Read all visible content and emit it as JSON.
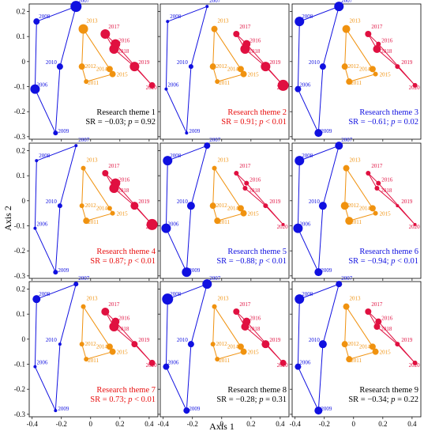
{
  "colors": {
    "blue": "#1010e0",
    "orange": "#f0920f",
    "red": "#e01040"
  },
  "chart_data": {
    "type": "scatter",
    "xlabel": "Axis 1",
    "ylabel": "Axis 2",
    "xlim": [
      -0.42,
      0.46
    ],
    "ylim": [
      -0.31,
      0.23
    ],
    "xticks": [
      -0.4,
      -0.2,
      0,
      0.2,
      0.4
    ],
    "xtick_labels": [
      "-0.4",
      "-0.2",
      "0",
      "0.2",
      "0.4"
    ],
    "yticks": [
      0.2,
      0.1,
      0,
      -0.1,
      -0.2,
      -0.3
    ],
    "ytick_labels": [
      "0.2",
      "0.1",
      "0",
      "-0.1",
      "-0.2",
      "-0.3"
    ],
    "grid": false,
    "trajectory": [
      {
        "year": "2006",
        "x": -0.38,
        "y": -0.11
      },
      {
        "year": "2007",
        "x": -0.1,
        "y": 0.22
      },
      {
        "year": "2008",
        "x": -0.37,
        "y": 0.16
      },
      {
        "year": "2009",
        "x": -0.24,
        "y": -0.285
      },
      {
        "year": "2010",
        "x": -0.21,
        "y": -0.02
      },
      {
        "year": "2011",
        "x": -0.03,
        "y": -0.08
      },
      {
        "year": "2012",
        "x": -0.06,
        "y": -0.02
      },
      {
        "year": "2013",
        "x": -0.05,
        "y": 0.13
      },
      {
        "year": "2014",
        "x": 0.13,
        "y": -0.03
      },
      {
        "year": "2015",
        "x": 0.15,
        "y": -0.05
      },
      {
        "year": "2016",
        "x": 0.17,
        "y": 0.07
      },
      {
        "year": "2017",
        "x": 0.1,
        "y": 0.11
      },
      {
        "year": "2018",
        "x": 0.16,
        "y": 0.05
      },
      {
        "year": "2019",
        "x": 0.3,
        "y": -0.02
      },
      {
        "year": "2020",
        "x": 0.42,
        "y": -0.095
      }
    ],
    "year_groups": [
      {
        "color": "blue",
        "years": [
          "2006",
          "2007",
          "2008",
          "2009",
          "2010"
        ],
        "path": [
          "2008",
          "2007",
          "2010",
          "2009",
          "2006",
          "2008"
        ]
      },
      {
        "color": "orange",
        "years": [
          "2011",
          "2012",
          "2013",
          "2014",
          "2015"
        ],
        "path": [
          "2013",
          "2012",
          "2011",
          "2015",
          "2014",
          "2013"
        ]
      },
      {
        "color": "red",
        "years": [
          "2016",
          "2017",
          "2018",
          "2019",
          "2020"
        ],
        "path": [
          "2017",
          "2016",
          "2020",
          "2019",
          "2018",
          "2017"
        ]
      }
    ],
    "panels": [
      {
        "label": "Research theme 1",
        "stat": "SR = −0.03; p = 0.92",
        "sr": "−0.03",
        "op": "=",
        "pval": "0.92",
        "color": "#000000",
        "sizes": {
          "2006": 6,
          "2007": 7,
          "2008": 4,
          "2009": 3,
          "2010": 4,
          "2011": 3,
          "2012": 4,
          "2013": 6,
          "2014": 4,
          "2015": 4,
          "2016": 6,
          "2017": 6,
          "2018": 6,
          "2019": 6,
          "2020": 4
        }
      },
      {
        "label": "Research theme 2",
        "stat": "SR = 0.91; p < 0.01",
        "sr": "0.91",
        "op": "<",
        "pval": "0.01",
        "color": "#e81010",
        "sizes": {
          "2006": 2,
          "2007": 2,
          "2008": 2,
          "2009": 2,
          "2010": 3,
          "2011": 3,
          "2012": 4,
          "2013": 4,
          "2014": 4,
          "2015": 4,
          "2016": 5,
          "2017": 4,
          "2018": 6,
          "2019": 6,
          "2020": 7
        }
      },
      {
        "label": "Research theme 3",
        "stat": "SR = −0.61; p = 0.02",
        "sr": "−0.61",
        "op": "=",
        "pval": "0.02",
        "color": "#1010e0",
        "sizes": {
          "2006": 4,
          "2007": 6,
          "2008": 6,
          "2009": 5,
          "2010": 4,
          "2011": 4,
          "2012": 4,
          "2013": 5,
          "2014": 4,
          "2015": 3,
          "2016": 3,
          "2017": 4,
          "2018": 5,
          "2019": 3,
          "2020": 3
        }
      },
      {
        "label": "Research theme 4",
        "stat": "SR = 0.87; p < 0.01",
        "sr": "0.87",
        "op": "<",
        "pval": "0.01",
        "color": "#e81010",
        "sizes": {
          "2006": 2,
          "2007": 2,
          "2008": 2,
          "2009": 3,
          "2010": 3,
          "2011": 4,
          "2012": 3,
          "2013": 3,
          "2014": 3,
          "2015": 3,
          "2016": 6,
          "2017": 4,
          "2018": 6,
          "2019": 5,
          "2020": 7
        }
      },
      {
        "label": "Research theme 5",
        "stat": "SR = −0.88; p < 0.01",
        "sr": "−0.88",
        "op": "<",
        "pval": "0.01",
        "color": "#1010e0",
        "sizes": {
          "2006": 6,
          "2007": 4,
          "2008": 6,
          "2009": 6,
          "2010": 5,
          "2011": 4,
          "2012": 4,
          "2013": 3,
          "2014": 4,
          "2015": 4,
          "2016": 3,
          "2017": 3,
          "2018": 3,
          "2019": 3,
          "2020": 2
        }
      },
      {
        "label": "Research theme 6",
        "stat": "SR = −0.94; p < 0.01",
        "sr": "−0.94",
        "op": "<",
        "pval": "0.01",
        "color": "#1010e0",
        "sizes": {
          "2006": 6,
          "2007": 5,
          "2008": 6,
          "2009": 5,
          "2010": 5,
          "2011": 5,
          "2012": 5,
          "2013": 4,
          "2014": 4,
          "2015": 3,
          "2016": 3,
          "2017": 3,
          "2018": 3,
          "2019": 2,
          "2020": 2
        }
      },
      {
        "label": "Research theme 7",
        "stat": "SR = 0.73; p < 0.01",
        "sr": "0.73",
        "op": "<",
        "pval": "0.01",
        "color": "#e81010",
        "sizes": {
          "2006": 2,
          "2007": 3,
          "2008": 5,
          "2009": 2,
          "2010": 2,
          "2011": 3,
          "2012": 3,
          "2013": 3,
          "2014": 4,
          "2015": 4,
          "2016": 5,
          "2017": 5,
          "2018": 6,
          "2019": 4,
          "2020": 4
        }
      },
      {
        "label": "Research theme 8",
        "stat": "SR = −0.28; p = 0.31",
        "sr": "−0.28",
        "op": "=",
        "pval": "0.31",
        "color": "#000000",
        "sizes": {
          "2006": 4,
          "2007": 6,
          "2008": 7,
          "2009": 4,
          "2010": 4,
          "2011": 3,
          "2012": 3,
          "2013": 3,
          "2014": 4,
          "2015": 4,
          "2016": 5,
          "2017": 4,
          "2018": 5,
          "2019": 5,
          "2020": 4
        }
      },
      {
        "label": "Research theme 9",
        "stat": "SR = −0.34; p = 0.22",
        "sr": "−0.34",
        "op": "=",
        "pval": "0.22",
        "color": "#000000",
        "sizes": {
          "2006": 4,
          "2007": 4,
          "2008": 6,
          "2009": 5,
          "2010": 5,
          "2011": 4,
          "2012": 4,
          "2013": 4,
          "2014": 4,
          "2015": 4,
          "2016": 4,
          "2017": 4,
          "2018": 4,
          "2019": 3,
          "2020": 3
        }
      }
    ]
  }
}
